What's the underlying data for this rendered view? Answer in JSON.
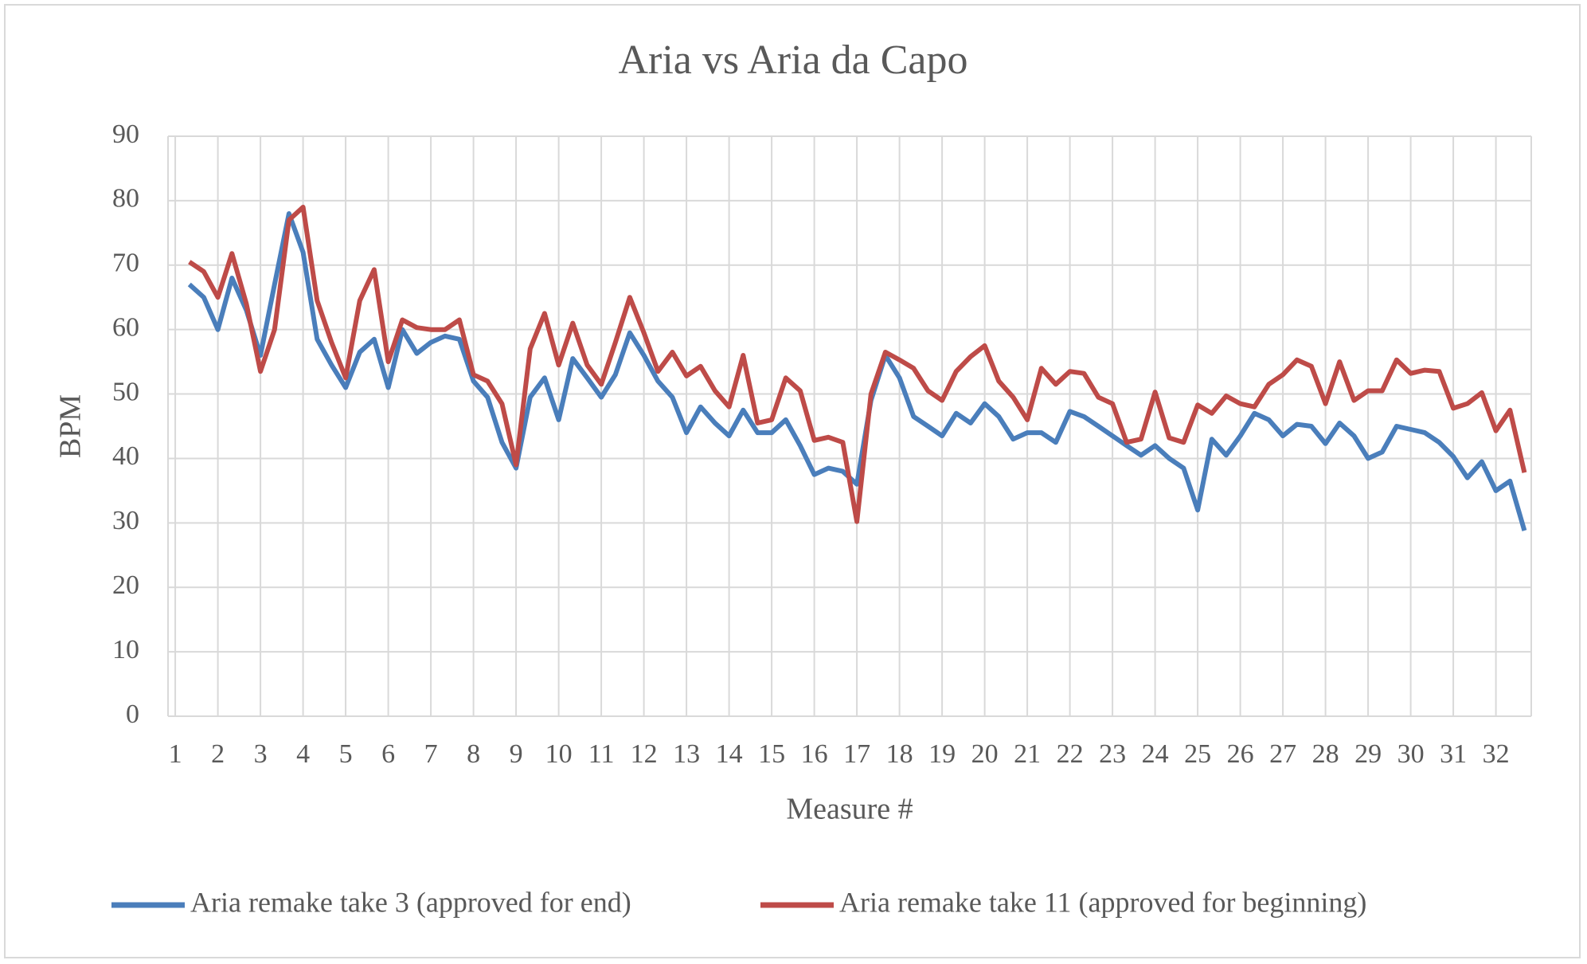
{
  "chart_data": {
    "type": "line",
    "title": "Aria vs Aria da Capo",
    "xlabel": "Measure #",
    "ylabel": "BPM",
    "x": [
      1.33,
      1.67,
      2,
      2.33,
      2.67,
      3,
      3.33,
      3.67,
      4,
      4.33,
      4.67,
      5,
      5.33,
      5.67,
      6,
      6.33,
      6.67,
      7,
      7.33,
      7.67,
      8,
      8.33,
      8.67,
      9,
      9.33,
      9.67,
      10,
      10.33,
      10.67,
      11,
      11.33,
      11.67,
      12,
      12.33,
      12.67,
      13,
      13.33,
      13.67,
      14,
      14.33,
      14.67,
      15,
      15.33,
      15.67,
      16,
      16.33,
      16.67,
      17,
      17.33,
      17.67,
      18,
      18.33,
      18.67,
      19,
      19.33,
      19.67,
      20,
      20.33,
      20.67,
      21,
      21.33,
      21.67,
      22,
      22.33,
      22.67,
      23,
      23.33,
      23.67,
      24,
      24.33,
      24.67,
      25,
      25.33,
      25.67,
      26,
      26.33,
      26.67,
      27,
      27.33,
      27.67,
      28,
      28.33,
      28.67,
      29,
      29.33,
      29.67,
      30,
      30.33,
      30.67,
      31,
      31.33,
      31.67,
      32,
      32.33,
      32.67
    ],
    "series": [
      {
        "name": "Aria remake take 3 (approved for end)",
        "color": "#4a7ebb",
        "values": [
          67,
          65,
          60,
          68,
          63,
          56,
          67,
          78,
          72,
          58.5,
          54.5,
          51,
          56.5,
          58.5,
          51,
          60,
          56.3,
          58,
          59,
          58.5,
          52,
          49.5,
          42.5,
          38.5,
          49.5,
          52.5,
          46,
          55.5,
          52.5,
          49.5,
          53,
          59.5,
          56,
          52,
          49.5,
          44,
          48,
          45.5,
          43.5,
          47.5,
          44,
          44,
          46,
          42,
          37.5,
          38.5,
          38,
          36,
          49,
          56,
          52.5,
          46.5,
          45,
          43.5,
          47,
          45.5,
          48.5,
          46.5,
          43,
          44,
          44,
          42.5,
          47.3,
          46.5,
          45,
          43.5,
          42,
          40.5,
          42,
          40,
          38.5,
          32,
          43,
          40.5,
          43.5,
          47,
          46,
          43.5,
          45.3,
          45,
          42.3,
          45.5,
          43.5,
          40,
          41,
          45,
          44.5,
          44,
          42.5,
          40.3,
          37,
          39.5,
          35,
          36.5,
          28.8
        ]
      },
      {
        "name": "Aria remake take 11 (approved for beginning)",
        "color": "#be4b48",
        "values": [
          70.5,
          69,
          65,
          71.8,
          64,
          53.5,
          60,
          77,
          79,
          64.5,
          58,
          52.5,
          64.5,
          69.3,
          55,
          61.5,
          60.3,
          60,
          60,
          61.5,
          53,
          52,
          48.5,
          39,
          57,
          62.5,
          54.5,
          61,
          54.5,
          51.5,
          58,
          65,
          59.5,
          53.5,
          56.5,
          52.8,
          54.3,
          50.5,
          48,
          56,
          45.5,
          46,
          52.5,
          50.5,
          42.8,
          43.3,
          42.5,
          30.2,
          50,
          56.5,
          55.3,
          54,
          50.5,
          49,
          53.5,
          55.8,
          57.5,
          52,
          49.5,
          46,
          54,
          51.5,
          53.5,
          53.2,
          49.5,
          48.5,
          42.5,
          43,
          50.3,
          43.2,
          42.5,
          48.3,
          47,
          49.7,
          48.5,
          48,
          51.5,
          53,
          55.3,
          54.3,
          48.5,
          55,
          49,
          50.5,
          50.5,
          55.3,
          53.2,
          53.7,
          53.5,
          47.8,
          48.5,
          50.2,
          44.3,
          47.5,
          37.8
        ]
      }
    ],
    "xlim": [
      0.83,
      32.83
    ],
    "xticks": [
      1,
      2,
      3,
      4,
      5,
      6,
      7,
      8,
      9,
      10,
      11,
      12,
      13,
      14,
      15,
      16,
      17,
      18,
      19,
      20,
      21,
      22,
      23,
      24,
      25,
      26,
      27,
      28,
      29,
      30,
      31,
      32
    ],
    "ylim": [
      0,
      90
    ],
    "yticks": [
      0,
      10,
      20,
      30,
      40,
      50,
      60,
      70,
      80,
      90
    ],
    "grid": true,
    "legend": "bottom"
  }
}
